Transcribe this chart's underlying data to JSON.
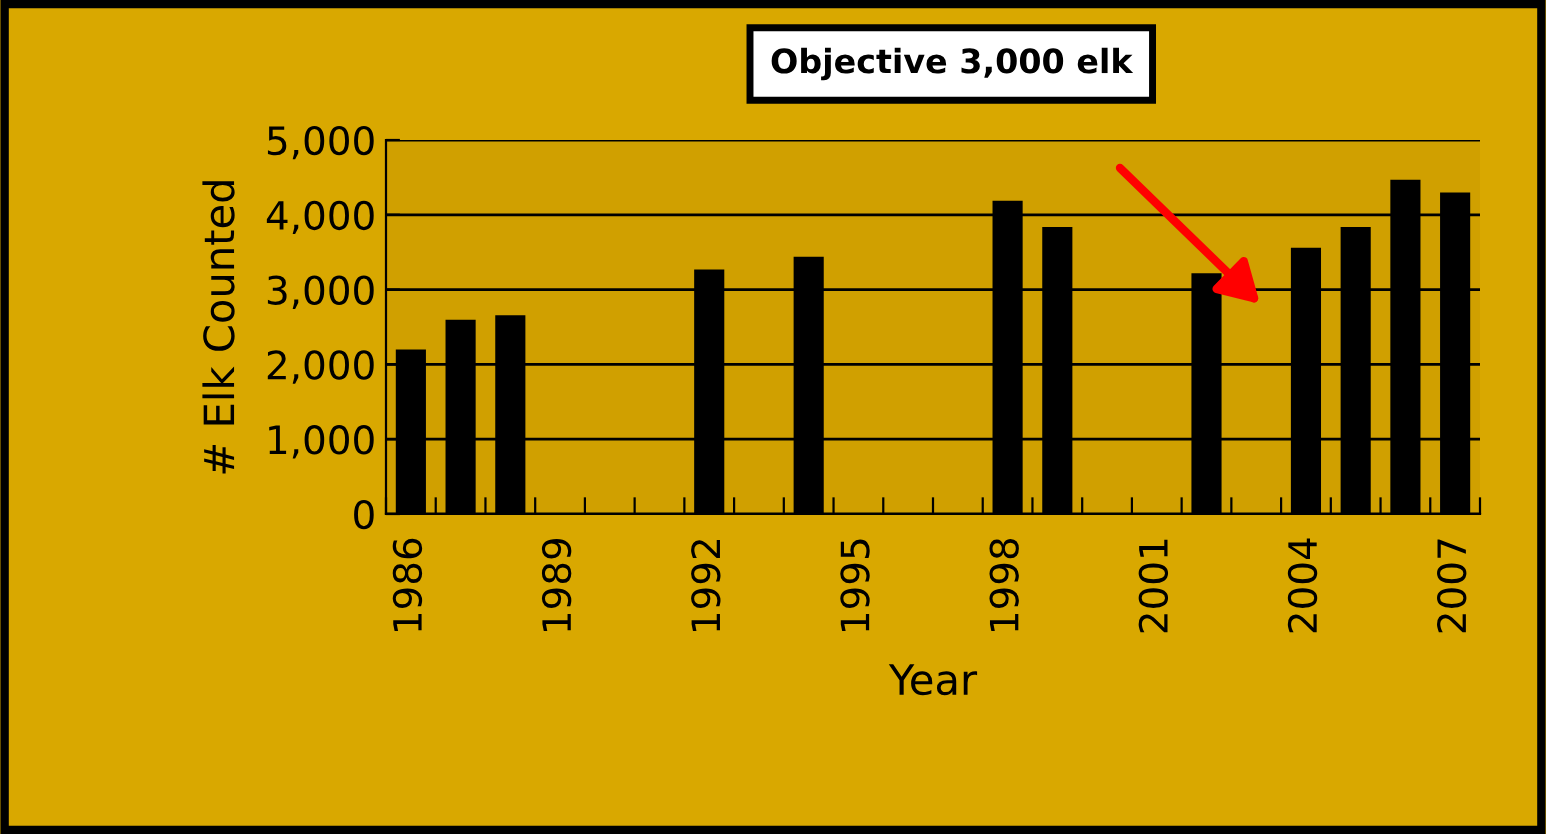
{
  "chart_data": {
    "type": "bar",
    "xlabel": "Year",
    "ylabel": "# Elk Counted",
    "categories": [
      "1986",
      null,
      null,
      "1989",
      null,
      null,
      "1992",
      null,
      null,
      "1995",
      null,
      null,
      "1998",
      null,
      null,
      "2001",
      null,
      null,
      "2004",
      null,
      null,
      "2007"
    ],
    "values": [
      2180,
      2580,
      2640,
      null,
      null,
      null,
      3250,
      null,
      3420,
      null,
      null,
      null,
      4170,
      3820,
      null,
      null,
      3200,
      null,
      3540,
      3820,
      4450,
      4280
    ],
    "color": "#000000",
    "ylim": [
      0,
      5000
    ],
    "yticks": [
      {
        "value": 0,
        "label": "0"
      },
      {
        "value": 1000,
        "label": "1,000"
      },
      {
        "value": 2000,
        "label": "2,000"
      },
      {
        "value": 3000,
        "label": "3,000"
      },
      {
        "value": 4000,
        "label": "4,000"
      },
      {
        "value": 5000,
        "label": "5,000"
      }
    ],
    "grid": "y",
    "annotations": [
      "Objective 3,000 elk"
    ]
  }
}
